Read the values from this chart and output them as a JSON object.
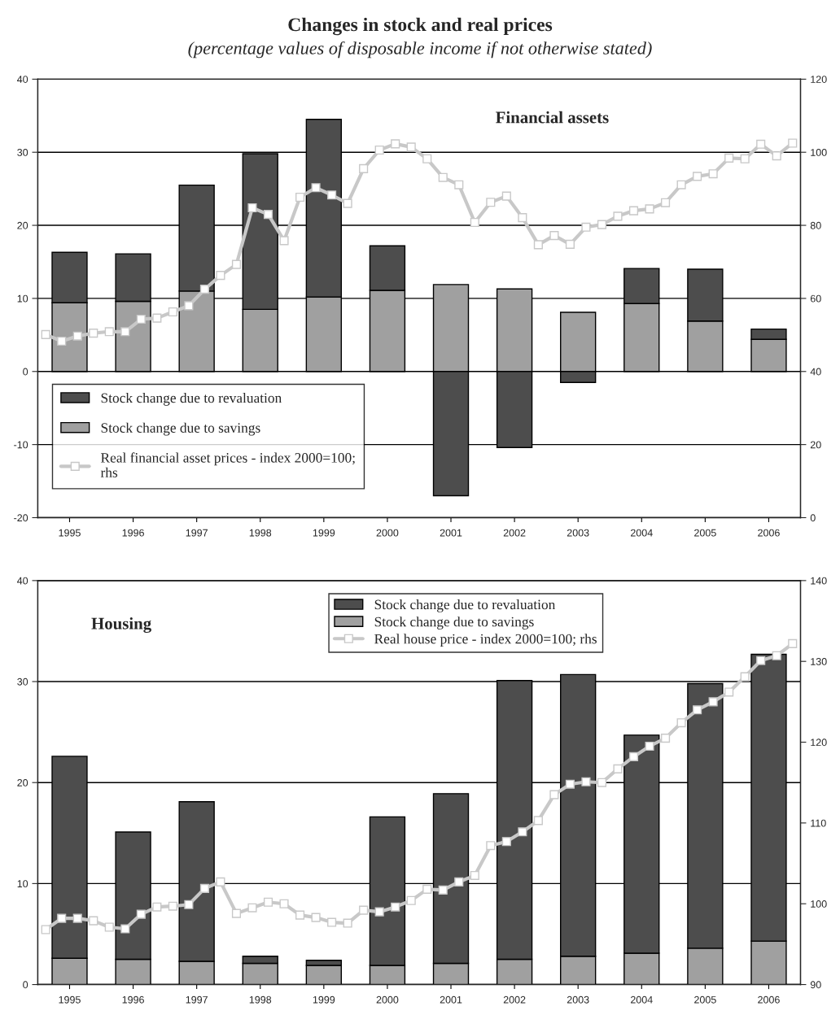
{
  "chart_data": [
    {
      "type": "bar",
      "title": "Changes in stock and real prices",
      "subtitle": "(percentage values of disposable income if not otherwise stated)",
      "annotations": [
        "Financial assets"
      ],
      "x": [
        1995,
        1996,
        1997,
        1998,
        1999,
        2000,
        2001,
        2002,
        2003,
        2004,
        2005,
        2006
      ],
      "stacked": true,
      "xlim": [
        1994.5,
        2006.5
      ],
      "xticks": [
        1995,
        1996,
        1997,
        1998,
        1999,
        2000,
        2001,
        2002,
        2003,
        2004,
        2005,
        2006
      ],
      "series": [
        {
          "name": "Stock change due to savings",
          "color": "#a0a0a0",
          "values": [
            9.4,
            9.6,
            11.0,
            8.5,
            10.2,
            11.1,
            11.9,
            11.3,
            8.1,
            9.3,
            6.9,
            4.4
          ]
        },
        {
          "name": "Stock change due to revaluation",
          "color": "#4d4d4d",
          "values": [
            6.9,
            6.5,
            14.5,
            21.3,
            24.3,
            6.1,
            -17.0,
            -10.4,
            -1.5,
            4.8,
            7.1,
            1.4
          ]
        },
        {
          "name": "Real financial asset prices - index 2000=100;\nrhs",
          "type": "line",
          "axis": "y2",
          "color": "#c8c8c8",
          "marker": "square",
          "x": [
            1994.625,
            1994.875,
            1995.125,
            1995.375,
            1995.625,
            1995.875,
            1996.125,
            1996.375,
            1996.625,
            1996.875,
            1997.125,
            1997.375,
            1997.625,
            1997.875,
            1998.125,
            1998.375,
            1998.625,
            1998.875,
            1999.125,
            1999.375,
            1999.625,
            1999.875,
            2000.125,
            2000.375,
            2000.625,
            2000.875,
            2001.125,
            2001.375,
            2001.625,
            2001.875,
            2002.125,
            2002.375,
            2002.625,
            2002.875,
            2003.125,
            2003.375,
            2003.625,
            2003.875,
            2004.125,
            2004.375,
            2004.625,
            2004.875,
            2005.125,
            2005.375,
            2005.625,
            2005.875,
            2006.125,
            2006.375
          ],
          "values": [
            50.1,
            48.3,
            49.7,
            50.5,
            50.9,
            50.9,
            54.3,
            54.6,
            56.3,
            58.0,
            62.5,
            66.3,
            69.3,
            84.8,
            83.0,
            75.8,
            87.7,
            90.3,
            88.3,
            86.0,
            95.5,
            100.6,
            102.3,
            101.4,
            98.2,
            93.1,
            91.1,
            80.8,
            86.3,
            88.0,
            82.1,
            74.7,
            77.2,
            74.8,
            79.5,
            80.2,
            82.5,
            84.0,
            84.5,
            86.2,
            91.1,
            93.4,
            94.1,
            98.4,
            98.2,
            102.2,
            99.0,
            102.5
          ]
        }
      ],
      "ylim": [
        -20,
        40
      ],
      "yticks": [
        -20,
        -10,
        0,
        10,
        20,
        30,
        40
      ],
      "y2lim": [
        0,
        120
      ],
      "y2ticks": [
        0,
        20,
        40,
        60,
        80,
        100,
        120
      ],
      "grid": "y",
      "legend": "bottom left"
    },
    {
      "type": "bar",
      "annotations": [
        "Housing"
      ],
      "x": [
        1995,
        1996,
        1997,
        1998,
        1999,
        2000,
        2001,
        2002,
        2003,
        2004,
        2005,
        2006
      ],
      "stacked": true,
      "xlim": [
        1994.5,
        2006.5
      ],
      "xticks": [
        1995,
        1996,
        1997,
        1998,
        1999,
        2000,
        2001,
        2002,
        2003,
        2004,
        2005,
        2006
      ],
      "series": [
        {
          "name": "Stock change due to savings",
          "color": "#a0a0a0",
          "values": [
            2.6,
            2.5,
            2.3,
            2.1,
            1.9,
            1.9,
            2.1,
            2.5,
            2.8,
            3.1,
            3.6,
            4.3
          ]
        },
        {
          "name": "Stock change due to revaluation",
          "color": "#4d4d4d",
          "values": [
            20.0,
            12.6,
            15.8,
            0.7,
            0.5,
            14.7,
            16.8,
            27.6,
            27.9,
            21.6,
            26.2,
            28.4
          ]
        },
        {
          "name": "Real house price - index 2000=100; rhs",
          "type": "line",
          "axis": "y2",
          "color": "#c8c8c8",
          "marker": "square",
          "x": [
            1994.625,
            1994.875,
            1995.125,
            1995.375,
            1995.625,
            1995.875,
            1996.125,
            1996.375,
            1996.625,
            1996.875,
            1997.125,
            1997.375,
            1997.625,
            1997.875,
            1998.125,
            1998.375,
            1998.625,
            1998.875,
            1999.125,
            1999.375,
            1999.625,
            1999.875,
            2000.125,
            2000.375,
            2000.625,
            2000.875,
            2001.125,
            2001.375,
            2001.625,
            2001.875,
            2002.125,
            2002.375,
            2002.625,
            2002.875,
            2003.125,
            2003.375,
            2003.625,
            2003.875,
            2004.125,
            2004.375,
            2004.625,
            2004.875,
            2005.125,
            2005.375,
            2005.625,
            2005.875,
            2006.125,
            2006.375
          ],
          "values": [
            96.8,
            98.2,
            98.2,
            97.9,
            97.1,
            96.9,
            98.7,
            99.6,
            99.7,
            99.9,
            101.9,
            102.7,
            98.8,
            99.5,
            100.2,
            100.0,
            98.6,
            98.3,
            97.7,
            97.6,
            99.2,
            99.0,
            99.6,
            100.4,
            101.8,
            101.7,
            102.7,
            103.5,
            107.2,
            107.7,
            108.9,
            110.3,
            113.5,
            114.8,
            115.1,
            115.0,
            116.7,
            118.2,
            119.5,
            120.5,
            122.4,
            124.0,
            125.0,
            126.2,
            128.1,
            130.1,
            130.7,
            132.2
          ]
        }
      ],
      "ylim": [
        0,
        40
      ],
      "yticks": [
        0,
        10,
        20,
        30,
        40
      ],
      "y2lim": [
        90,
        140
      ],
      "y2ticks": [
        90,
        100,
        110,
        120,
        130,
        140
      ],
      "grid": "y",
      "legend": "top right"
    }
  ]
}
